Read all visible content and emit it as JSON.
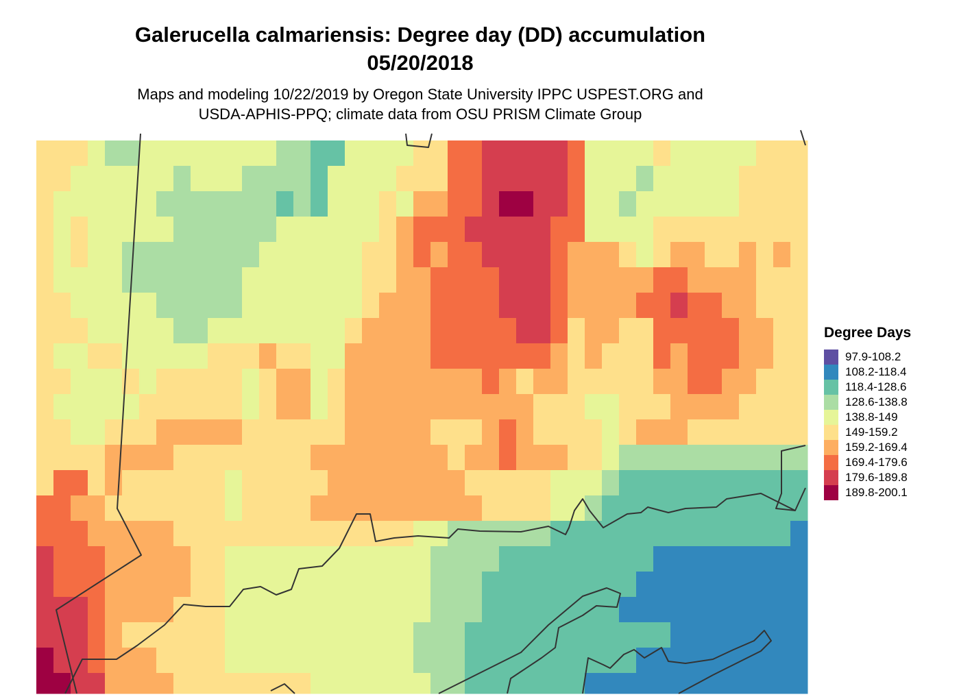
{
  "title_line1": "Galerucella calmariensis: Degree day (DD) accumulation",
  "title_line2": "05/20/2018",
  "subtitle_line1": "Maps and modeling 10/22/2019 by Oregon State University IPPC USPEST.ORG and",
  "subtitle_line2": "USDA-APHIS-PPQ; climate data from OSU PRISM Climate Group",
  "legend": {
    "title": "Degree Days",
    "items": [
      {
        "label": "97.9-108.2",
        "color": "#5e4fa2"
      },
      {
        "label": "108.2-118.4",
        "color": "#3288bd"
      },
      {
        "label": "118.4-128.6",
        "color": "#66c2a5"
      },
      {
        "label": "128.6-138.8",
        "color": "#abdda4"
      },
      {
        "label": "138.8-149",
        "color": "#e6f598"
      },
      {
        "label": "149-159.2",
        "color": "#fee08b"
      },
      {
        "label": "159.2-169.4",
        "color": "#fdae61"
      },
      {
        "label": "169.4-179.6",
        "color": "#f46d43"
      },
      {
        "label": "179.6-189.8",
        "color": "#d53e4f"
      },
      {
        "label": "189.8-200.1",
        "color": "#9e0142"
      }
    ]
  },
  "border_color": "#333333"
}
